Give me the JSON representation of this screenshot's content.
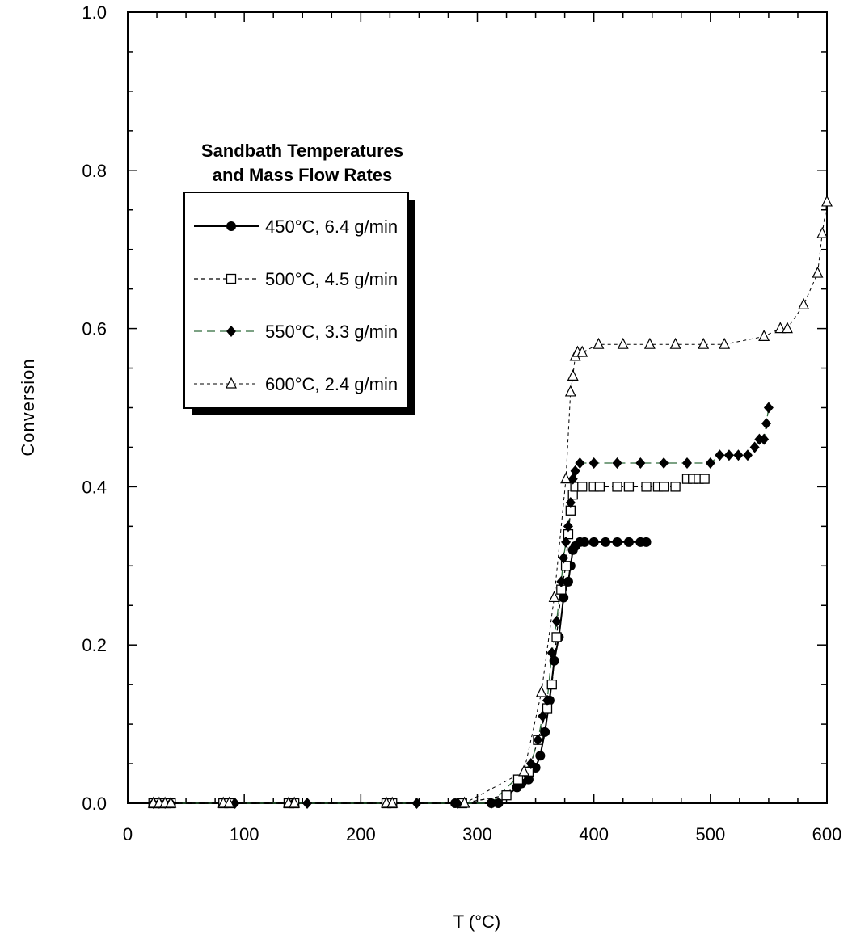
{
  "chart_data": {
    "type": "scatter",
    "title": "",
    "xlabel": "T (°C)",
    "ylabel": "Conversion",
    "xlim": [
      0,
      600
    ],
    "ylim": [
      0,
      1.0
    ],
    "x_ticks": [
      "0",
      "100",
      "200",
      "300",
      "400",
      "500",
      "600"
    ],
    "y_ticks": [
      "0.0",
      "0.2",
      "0.4",
      "0.6",
      "0.8",
      "1.0"
    ],
    "grid": false,
    "legend": {
      "title_line1": "Sandbath  Temperatures",
      "title_line2": "and Mass Flow Rates",
      "placement": "upper-left"
    },
    "series": [
      {
        "name": "450°C, 6.4 g/min",
        "marker": "circle-filled",
        "line": "solid",
        "color": "#000000",
        "x": [
          22,
          27,
          32,
          37,
          82,
          87,
          138,
          143,
          222,
          227,
          281,
          287,
          312,
          318,
          334,
          338,
          344,
          350,
          354,
          358,
          362,
          366,
          370,
          374,
          378,
          380,
          382,
          384,
          388,
          392,
          400,
          410,
          420,
          430,
          440,
          445
        ],
        "y": [
          0,
          0,
          0,
          0,
          0,
          0,
          0,
          0,
          0,
          0,
          0,
          0,
          0,
          0,
          0.02,
          0.025,
          0.03,
          0.045,
          0.06,
          0.09,
          0.13,
          0.18,
          0.21,
          0.26,
          0.28,
          0.3,
          0.32,
          0.325,
          0.33,
          0.33,
          0.33,
          0.33,
          0.33,
          0.33,
          0.33,
          0.33
        ]
      },
      {
        "name": "500°C, 4.5 g/min",
        "marker": "square-open",
        "line": "dashed",
        "color": "#000000",
        "x": [
          22,
          27,
          32,
          37,
          82,
          87,
          138,
          143,
          222,
          227,
          287,
          325,
          335,
          344,
          352,
          360,
          364,
          368,
          372,
          376,
          378,
          380,
          382,
          384,
          390,
          400,
          405,
          420,
          430,
          445,
          455,
          460,
          470,
          480,
          485,
          490,
          495
        ],
        "y": [
          0,
          0,
          0,
          0,
          0,
          0,
          0,
          0,
          0,
          0,
          0,
          0.01,
          0.03,
          0.04,
          0.08,
          0.12,
          0.15,
          0.21,
          0.27,
          0.3,
          0.34,
          0.37,
          0.39,
          0.4,
          0.4,
          0.4,
          0.4,
          0.4,
          0.4,
          0.4,
          0.4,
          0.4,
          0.4,
          0.41,
          0.41,
          0.41,
          0.41
        ]
      },
      {
        "name": "550°C, 3.3 g/min",
        "marker": "diamond-filled",
        "line": "long-dash",
        "color": "#2e6b3a",
        "x": [
          22,
          27,
          32,
          37,
          92,
          142,
          154,
          248,
          283,
          312,
          346,
          352,
          356,
          360,
          364,
          368,
          372,
          374,
          376,
          378,
          380,
          382,
          384,
          388,
          400,
          420,
          440,
          460,
          480,
          500,
          508,
          516,
          524,
          532,
          538,
          542,
          546,
          548,
          550
        ],
        "y": [
          0,
          0,
          0,
          0,
          0,
          0,
          0,
          0,
          0,
          0,
          0.05,
          0.08,
          0.11,
          0.13,
          0.19,
          0.23,
          0.28,
          0.31,
          0.33,
          0.35,
          0.38,
          0.41,
          0.42,
          0.43,
          0.43,
          0.43,
          0.43,
          0.43,
          0.43,
          0.43,
          0.44,
          0.44,
          0.44,
          0.44,
          0.45,
          0.46,
          0.46,
          0.48,
          0.5
        ]
      },
      {
        "name": "600°C, 2.4 g/min",
        "marker": "triangle-open",
        "line": "dotted",
        "color": "#000000",
        "x": [
          22,
          27,
          32,
          37,
          82,
          87,
          138,
          143,
          222,
          227,
          289,
          340,
          355,
          366,
          376,
          380,
          382,
          384,
          386,
          390,
          404,
          425,
          448,
          470,
          494,
          512,
          546,
          560,
          566,
          580,
          592,
          596,
          600
        ],
        "y": [
          0,
          0,
          0,
          0,
          0,
          0,
          0,
          0,
          0,
          0,
          0,
          0.04,
          0.14,
          0.26,
          0.41,
          0.52,
          0.54,
          0.565,
          0.57,
          0.57,
          0.58,
          0.58,
          0.58,
          0.58,
          0.58,
          0.58,
          0.59,
          0.6,
          0.6,
          0.63,
          0.67,
          0.72,
          0.76
        ]
      }
    ]
  }
}
